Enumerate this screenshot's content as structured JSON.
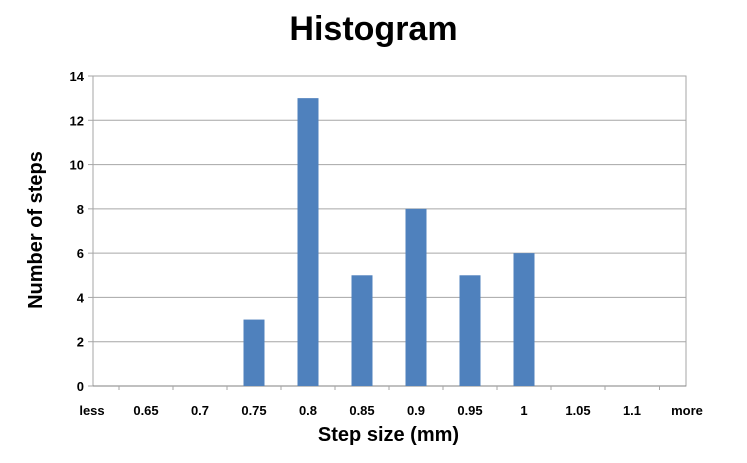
{
  "chart_data": {
    "type": "bar",
    "title": "Histogram",
    "xlabel": "Step size (mm)",
    "ylabel": "Number of steps",
    "categories": [
      "less",
      "0.65",
      "0.7",
      "0.75",
      "0.8",
      "0.85",
      "0.9",
      "0.95",
      "1",
      "1.05",
      "1.1",
      "more"
    ],
    "values": [
      0,
      0,
      0,
      3,
      13,
      5,
      8,
      5,
      6,
      0,
      0,
      0
    ],
    "ylim": [
      0,
      14
    ],
    "yticks": [
      "0",
      "2",
      "4",
      "6",
      "8",
      "10",
      "12",
      "14"
    ],
    "grid": true,
    "legend": "none",
    "bar_color": "#4F81BD"
  }
}
